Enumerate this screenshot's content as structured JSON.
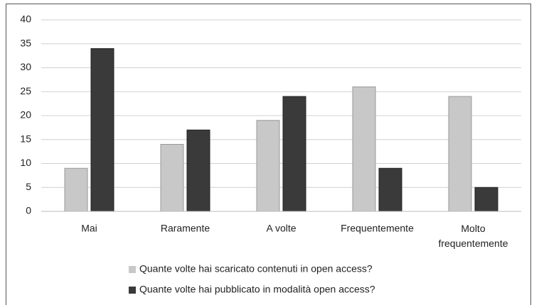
{
  "chart_data": {
    "type": "bar",
    "categories": [
      "Mai",
      "Raramente",
      "A volte",
      "Frequentemente",
      "Molto frequentemente"
    ],
    "series": [
      {
        "name": "Quante volte hai scaricato contenuti in open access?",
        "color": "#c8c8c8",
        "values": [
          9,
          14,
          19,
          26,
          24
        ]
      },
      {
        "name": "Quante volte hai pubblicato in modalità open access?",
        "color": "#3a3a3a",
        "values": [
          34,
          17,
          24,
          9,
          5
        ]
      }
    ],
    "ylim": [
      0,
      40
    ],
    "yticks": [
      0,
      5,
      10,
      15,
      20,
      25,
      30,
      35,
      40
    ],
    "grid": true,
    "legend": "bottom"
  }
}
